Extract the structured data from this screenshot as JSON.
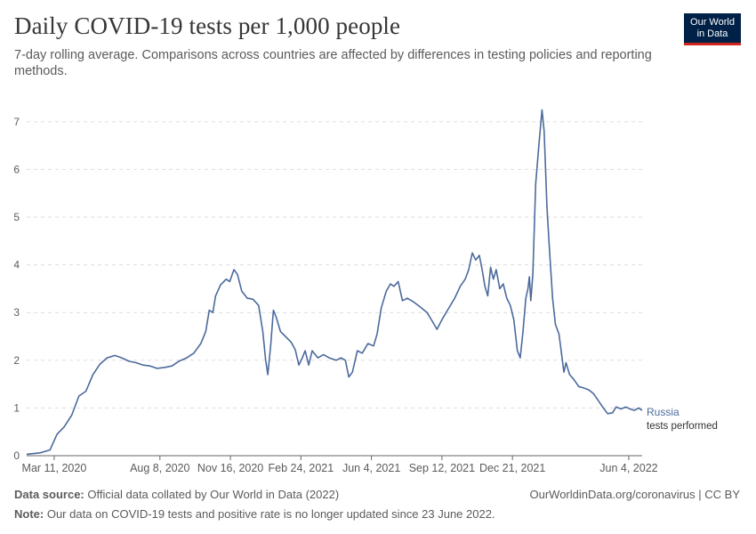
{
  "header": {
    "title": "Daily COVID-19 tests per 1,000 people",
    "subtitle": "7-day rolling average. Comparisons across countries are affected by differences in testing policies and reporting methods."
  },
  "logo": {
    "line1": "Our World",
    "line2": "in Data"
  },
  "footer": {
    "source_label": "Data source:",
    "source_text": "Official data collated by Our World in Data (2022)",
    "credit": "OurWorldinData.org/coronavirus | CC BY",
    "note_label": "Note:",
    "note_text": "Our data on COVID-19 tests and positive rate is no longer updated since 23 June 2022."
  },
  "colors": {
    "series": "#4c6a9c",
    "grid": "#dddddd",
    "axis": "#666666",
    "label": "#5b5b5b"
  },
  "chart_data": {
    "type": "line",
    "x_axis_type": "date",
    "xlim": [
      "2020-02-01",
      "2022-06-23"
    ],
    "ylim": [
      0,
      7.5
    ],
    "yticks": [
      0,
      1,
      2,
      3,
      4,
      5,
      6,
      7
    ],
    "xticks": [
      "2020-03-11",
      "2020-08-08",
      "2020-11-16",
      "2021-02-24",
      "2021-06-04",
      "2021-09-12",
      "2021-12-21",
      "2022-06-04"
    ],
    "xtick_labels": [
      "Mar 11, 2020",
      "Aug 8, 2020",
      "Nov 16, 2020",
      "Feb 24, 2021",
      "Jun 4, 2021",
      "Sep 12, 2021",
      "Dec 21, 2021",
      "Jun 4, 2022"
    ],
    "grid": "horizontal-dashed",
    "series": [
      {
        "name": "Russia",
        "sublabel": "tests performed",
        "points": [
          [
            "2020-02-01",
            0.03
          ],
          [
            "2020-02-20",
            0.06
          ],
          [
            "2020-03-05",
            0.12
          ],
          [
            "2020-03-15",
            0.45
          ],
          [
            "2020-03-25",
            0.6
          ],
          [
            "2020-04-05",
            0.85
          ],
          [
            "2020-04-15",
            1.25
          ],
          [
            "2020-04-25",
            1.35
          ],
          [
            "2020-05-05",
            1.7
          ],
          [
            "2020-05-15",
            1.92
          ],
          [
            "2020-05-25",
            2.05
          ],
          [
            "2020-06-05",
            2.1
          ],
          [
            "2020-06-15",
            2.05
          ],
          [
            "2020-06-25",
            1.98
          ],
          [
            "2020-07-05",
            1.95
          ],
          [
            "2020-07-15",
            1.9
          ],
          [
            "2020-07-25",
            1.88
          ],
          [
            "2020-08-04",
            1.83
          ],
          [
            "2020-08-15",
            1.85
          ],
          [
            "2020-08-25",
            1.88
          ],
          [
            "2020-09-04",
            1.98
          ],
          [
            "2020-09-15",
            2.05
          ],
          [
            "2020-09-25",
            2.15
          ],
          [
            "2020-10-05",
            2.35
          ],
          [
            "2020-10-12",
            2.6
          ],
          [
            "2020-10-17",
            3.05
          ],
          [
            "2020-10-22",
            3.0
          ],
          [
            "2020-10-26",
            3.35
          ],
          [
            "2020-11-02",
            3.58
          ],
          [
            "2020-11-10",
            3.7
          ],
          [
            "2020-11-15",
            3.65
          ],
          [
            "2020-11-21",
            3.9
          ],
          [
            "2020-11-26",
            3.8
          ],
          [
            "2020-12-02",
            3.45
          ],
          [
            "2020-12-10",
            3.3
          ],
          [
            "2020-12-18",
            3.28
          ],
          [
            "2020-12-26",
            3.15
          ],
          [
            "2021-01-01",
            2.6
          ],
          [
            "2021-01-05",
            2.0
          ],
          [
            "2021-01-08",
            1.7
          ],
          [
            "2021-01-12",
            2.3
          ],
          [
            "2021-01-16",
            3.05
          ],
          [
            "2021-01-20",
            2.9
          ],
          [
            "2021-01-26",
            2.6
          ],
          [
            "2021-02-02",
            2.5
          ],
          [
            "2021-02-10",
            2.38
          ],
          [
            "2021-02-16",
            2.22
          ],
          [
            "2021-02-21",
            1.9
          ],
          [
            "2021-02-26",
            2.05
          ],
          [
            "2021-03-02",
            2.2
          ],
          [
            "2021-03-07",
            1.9
          ],
          [
            "2021-03-12",
            2.2
          ],
          [
            "2021-03-20",
            2.05
          ],
          [
            "2021-03-28",
            2.12
          ],
          [
            "2021-04-05",
            2.05
          ],
          [
            "2021-04-15",
            2.0
          ],
          [
            "2021-04-22",
            2.05
          ],
          [
            "2021-04-28",
            2.0
          ],
          [
            "2021-05-03",
            1.65
          ],
          [
            "2021-05-08",
            1.75
          ],
          [
            "2021-05-15",
            2.2
          ],
          [
            "2021-05-22",
            2.15
          ],
          [
            "2021-05-30",
            2.35
          ],
          [
            "2021-06-07",
            2.3
          ],
          [
            "2021-06-12",
            2.55
          ],
          [
            "2021-06-18",
            3.1
          ],
          [
            "2021-06-25",
            3.45
          ],
          [
            "2021-07-01",
            3.6
          ],
          [
            "2021-07-06",
            3.55
          ],
          [
            "2021-07-12",
            3.65
          ],
          [
            "2021-07-18",
            3.25
          ],
          [
            "2021-07-25",
            3.3
          ],
          [
            "2021-08-03",
            3.22
          ],
          [
            "2021-08-12",
            3.12
          ],
          [
            "2021-08-22",
            3.0
          ],
          [
            "2021-08-30",
            2.8
          ],
          [
            "2021-09-05",
            2.65
          ],
          [
            "2021-09-12",
            2.85
          ],
          [
            "2021-09-20",
            3.05
          ],
          [
            "2021-09-30",
            3.3
          ],
          [
            "2021-10-08",
            3.55
          ],
          [
            "2021-10-15",
            3.7
          ],
          [
            "2021-10-20",
            3.9
          ],
          [
            "2021-10-25",
            4.25
          ],
          [
            "2021-10-30",
            4.1
          ],
          [
            "2021-11-04",
            4.2
          ],
          [
            "2021-11-08",
            3.9
          ],
          [
            "2021-11-12",
            3.55
          ],
          [
            "2021-11-16",
            3.35
          ],
          [
            "2021-11-20",
            3.95
          ],
          [
            "2021-11-24",
            3.7
          ],
          [
            "2021-11-28",
            3.9
          ],
          [
            "2021-12-03",
            3.5
          ],
          [
            "2021-12-08",
            3.6
          ],
          [
            "2021-12-13",
            3.3
          ],
          [
            "2021-12-18",
            3.15
          ],
          [
            "2021-12-23",
            2.85
          ],
          [
            "2021-12-28",
            2.2
          ],
          [
            "2022-01-01",
            2.05
          ],
          [
            "2022-01-05",
            2.6
          ],
          [
            "2022-01-09",
            3.3
          ],
          [
            "2022-01-12",
            3.5
          ],
          [
            "2022-01-14",
            3.75
          ],
          [
            "2022-01-16",
            3.25
          ],
          [
            "2022-01-19",
            3.8
          ],
          [
            "2022-01-23",
            5.7
          ],
          [
            "2022-01-28",
            6.6
          ],
          [
            "2022-02-01",
            7.25
          ],
          [
            "2022-02-04",
            6.8
          ],
          [
            "2022-02-08",
            5.2
          ],
          [
            "2022-02-12",
            4.2
          ],
          [
            "2022-02-16",
            3.3
          ],
          [
            "2022-02-20",
            2.75
          ],
          [
            "2022-02-25",
            2.55
          ],
          [
            "2022-03-01",
            2.1
          ],
          [
            "2022-03-04",
            1.75
          ],
          [
            "2022-03-07",
            1.95
          ],
          [
            "2022-03-12",
            1.7
          ],
          [
            "2022-03-18",
            1.6
          ],
          [
            "2022-03-25",
            1.45
          ],
          [
            "2022-04-01",
            1.42
          ],
          [
            "2022-04-08",
            1.38
          ],
          [
            "2022-04-15",
            1.3
          ],
          [
            "2022-04-22",
            1.15
          ],
          [
            "2022-04-29",
            1.0
          ],
          [
            "2022-05-05",
            0.88
          ],
          [
            "2022-05-12",
            0.9
          ],
          [
            "2022-05-17",
            1.02
          ],
          [
            "2022-05-24",
            0.98
          ],
          [
            "2022-05-31",
            1.02
          ],
          [
            "2022-06-06",
            0.98
          ],
          [
            "2022-06-12",
            0.95
          ],
          [
            "2022-06-18",
            1.0
          ],
          [
            "2022-06-23",
            0.95
          ]
        ]
      }
    ]
  }
}
